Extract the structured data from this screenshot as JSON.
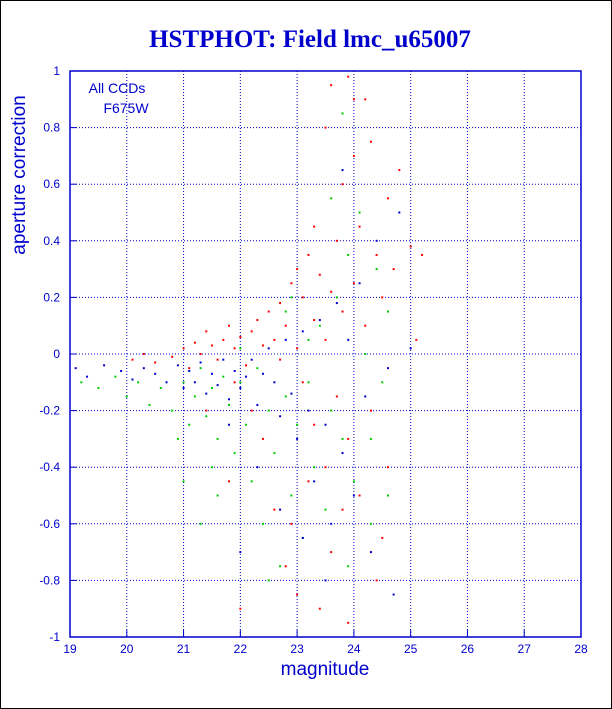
{
  "chart_data": {
    "type": "scatter",
    "title": "HSTPHOT: Field lmc_u65007",
    "xlabel": "magnitude",
    "ylabel": "aperture correction",
    "xlim": [
      19,
      28
    ],
    "ylim": [
      -1,
      1
    ],
    "x_ticks": [
      "19",
      "20",
      "21",
      "22",
      "23",
      "24",
      "25",
      "26",
      "27",
      "28"
    ],
    "y_ticks": [
      "-1",
      "-0.8",
      "-0.6",
      "-0.4",
      "-0.2",
      "0",
      "0.2",
      "0.4",
      "0.6",
      "0.8",
      "1"
    ],
    "grid": true,
    "annotations": [
      "All CCDs",
      "F675W"
    ],
    "series": [
      {
        "color": "#ff0000",
        "points": [
          [
            20.1,
            -0.02
          ],
          [
            20.3,
            0.0
          ],
          [
            20.5,
            -0.03
          ],
          [
            20.8,
            -0.01
          ],
          [
            21.0,
            0.02
          ],
          [
            21.1,
            -0.05
          ],
          [
            21.2,
            0.04
          ],
          [
            21.3,
            0.0
          ],
          [
            21.4,
            0.08
          ],
          [
            21.5,
            0.03
          ],
          [
            21.6,
            -0.02
          ],
          [
            21.7,
            0.05
          ],
          [
            21.8,
            0.1
          ],
          [
            21.9,
            0.02
          ],
          [
            22.0,
            0.06
          ],
          [
            22.1,
            -0.04
          ],
          [
            22.2,
            0.08
          ],
          [
            22.3,
            0.12
          ],
          [
            22.4,
            0.03
          ],
          [
            22.5,
            0.15
          ],
          [
            22.6,
            0.05
          ],
          [
            22.7,
            0.18
          ],
          [
            22.8,
            0.1
          ],
          [
            22.9,
            0.25
          ],
          [
            23.0,
            0.02
          ],
          [
            23.0,
            0.3
          ],
          [
            23.1,
            0.2
          ],
          [
            23.1,
            -0.1
          ],
          [
            23.2,
            0.35
          ],
          [
            23.3,
            0.12
          ],
          [
            23.3,
            -0.25
          ],
          [
            23.4,
            0.28
          ],
          [
            23.5,
            0.05
          ],
          [
            23.5,
            -0.4
          ],
          [
            23.6,
            0.22
          ],
          [
            23.7,
            0.4
          ],
          [
            23.7,
            -0.15
          ],
          [
            23.8,
            0.6
          ],
          [
            23.8,
            0.15
          ],
          [
            23.9,
            -0.3
          ],
          [
            24.0,
            0.7
          ],
          [
            24.0,
            0.25
          ],
          [
            24.1,
            -0.5
          ],
          [
            24.1,
            0.45
          ],
          [
            24.2,
            0.9
          ],
          [
            24.2,
            0.1
          ],
          [
            24.3,
            -0.2
          ],
          [
            24.3,
            0.75
          ],
          [
            24.4,
            0.35
          ],
          [
            24.5,
            0.2
          ],
          [
            24.5,
            -0.65
          ],
          [
            24.6,
            0.55
          ],
          [
            24.7,
            0.3
          ],
          [
            24.8,
            0.65
          ],
          [
            25.0,
            0.38
          ],
          [
            25.1,
            0.05
          ],
          [
            25.2,
            0.35
          ],
          [
            23.9,
            0.98
          ],
          [
            23.6,
            0.95
          ],
          [
            24.0,
            0.9
          ],
          [
            22.4,
            -0.3
          ],
          [
            22.6,
            -0.55
          ],
          [
            22.8,
            -0.75
          ],
          [
            23.0,
            -0.85
          ],
          [
            23.2,
            -0.45
          ],
          [
            23.4,
            -0.9
          ],
          [
            23.6,
            -0.7
          ],
          [
            23.9,
            -0.95
          ],
          [
            24.4,
            -0.8
          ],
          [
            22.0,
            -0.9
          ],
          [
            21.8,
            -0.45
          ],
          [
            21.4,
            -0.2
          ],
          [
            22.2,
            -0.2
          ],
          [
            22.9,
            -0.6
          ],
          [
            24.6,
            -0.4
          ],
          [
            23.8,
            -0.55
          ],
          [
            21.9,
            -0.1
          ],
          [
            22.7,
            -0.02
          ],
          [
            23.3,
            0.45
          ],
          [
            23.5,
            0.8
          ]
        ]
      },
      {
        "color": "#00cc00",
        "points": [
          [
            19.2,
            -0.1
          ],
          [
            19.5,
            -0.12
          ],
          [
            19.8,
            -0.08
          ],
          [
            20.0,
            -0.15
          ],
          [
            20.2,
            -0.1
          ],
          [
            20.4,
            -0.18
          ],
          [
            20.6,
            -0.12
          ],
          [
            20.8,
            -0.2
          ],
          [
            21.0,
            -0.1
          ],
          [
            21.1,
            -0.25
          ],
          [
            21.2,
            -0.15
          ],
          [
            21.3,
            -0.05
          ],
          [
            21.4,
            -0.22
          ],
          [
            21.5,
            -0.12
          ],
          [
            21.6,
            -0.3
          ],
          [
            21.7,
            -0.08
          ],
          [
            21.8,
            -0.18
          ],
          [
            21.9,
            -0.35
          ],
          [
            22.0,
            -0.1
          ],
          [
            22.1,
            -0.25
          ],
          [
            22.2,
            -0.45
          ],
          [
            22.3,
            -0.05
          ],
          [
            22.4,
            -0.6
          ],
          [
            22.5,
            -0.2
          ],
          [
            22.6,
            -0.35
          ],
          [
            22.7,
            -0.75
          ],
          [
            22.8,
            -0.15
          ],
          [
            22.9,
            -0.5
          ],
          [
            23.0,
            -0.25
          ],
          [
            23.1,
            -0.65
          ],
          [
            23.2,
            -0.1
          ],
          [
            23.3,
            -0.4
          ],
          [
            23.4,
            0.1
          ],
          [
            23.5,
            -0.55
          ],
          [
            23.6,
            -0.2
          ],
          [
            23.7,
            0.2
          ],
          [
            23.8,
            -0.3
          ],
          [
            23.9,
            0.35
          ],
          [
            24.0,
            -0.45
          ],
          [
            24.1,
            0.5
          ],
          [
            24.2,
            0.0
          ],
          [
            24.3,
            -0.6
          ],
          [
            24.4,
            0.3
          ],
          [
            24.5,
            -0.1
          ],
          [
            24.6,
            0.15
          ],
          [
            23.6,
            0.55
          ],
          [
            23.2,
            0.05
          ],
          [
            22.8,
            0.15
          ],
          [
            22.0,
            0.02
          ],
          [
            21.5,
            -0.4
          ],
          [
            20.9,
            -0.3
          ],
          [
            21.0,
            -0.45
          ],
          [
            21.3,
            -0.6
          ],
          [
            21.6,
            -0.5
          ],
          [
            22.5,
            -0.8
          ],
          [
            23.9,
            -0.75
          ],
          [
            24.3,
            -0.3
          ],
          [
            24.6,
            -0.5
          ],
          [
            22.9,
            0.2
          ],
          [
            23.8,
            0.85
          ]
        ]
      },
      {
        "color": "#0000cc",
        "points": [
          [
            19.1,
            -0.05
          ],
          [
            19.3,
            -0.08
          ],
          [
            19.6,
            -0.04
          ],
          [
            19.9,
            -0.06
          ],
          [
            20.1,
            -0.09
          ],
          [
            20.3,
            -0.05
          ],
          [
            20.5,
            -0.07
          ],
          [
            20.7,
            -0.1
          ],
          [
            20.9,
            -0.04
          ],
          [
            21.0,
            -0.12
          ],
          [
            21.1,
            -0.06
          ],
          [
            21.2,
            -0.1
          ],
          [
            21.3,
            -0.03
          ],
          [
            21.4,
            -0.14
          ],
          [
            21.5,
            -0.07
          ],
          [
            21.6,
            -0.11
          ],
          [
            21.7,
            -0.02
          ],
          [
            21.8,
            -0.16
          ],
          [
            21.9,
            -0.06
          ],
          [
            22.0,
            -0.12
          ],
          [
            22.1,
            -0.08
          ],
          [
            22.2,
            -0.02
          ],
          [
            22.3,
            -0.18
          ],
          [
            22.4,
            -0.07
          ],
          [
            22.5,
            0.02
          ],
          [
            22.6,
            -0.1
          ],
          [
            22.7,
            -0.22
          ],
          [
            22.8,
            0.05
          ],
          [
            22.9,
            -0.14
          ],
          [
            23.0,
            -0.3
          ],
          [
            23.1,
            0.08
          ],
          [
            23.2,
            -0.2
          ],
          [
            23.3,
            -0.45
          ],
          [
            23.4,
            0.12
          ],
          [
            23.5,
            -0.25
          ],
          [
            23.6,
            -0.6
          ],
          [
            23.7,
            0.18
          ],
          [
            23.8,
            -0.35
          ],
          [
            23.9,
            0.05
          ],
          [
            24.0,
            -0.5
          ],
          [
            24.1,
            0.25
          ],
          [
            24.2,
            -0.15
          ],
          [
            24.3,
            -0.7
          ],
          [
            24.4,
            0.4
          ],
          [
            24.6,
            -0.05
          ],
          [
            24.8,
            0.5
          ],
          [
            25.0,
            0.02
          ],
          [
            22.7,
            -0.55
          ],
          [
            22.3,
            -0.4
          ],
          [
            21.8,
            -0.25
          ],
          [
            23.5,
            -0.8
          ],
          [
            24.7,
            -0.85
          ],
          [
            23.8,
            0.65
          ],
          [
            23.1,
            -0.65
          ],
          [
            22.0,
            -0.7
          ]
        ]
      }
    ]
  }
}
